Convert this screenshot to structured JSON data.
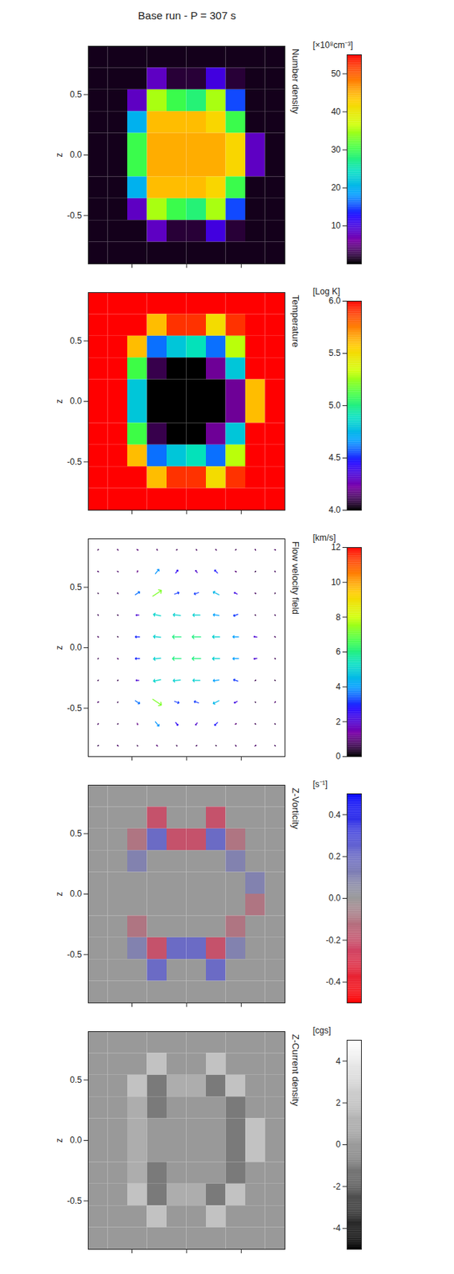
{
  "title": "Base run - P = 307 s",
  "chart_data": [
    {
      "type": "heatmap",
      "title": "Number density",
      "color": "rainbow",
      "x": [
        -0.81,
        -0.63,
        -0.45,
        -0.27,
        -0.09,
        0.09,
        0.27,
        0.45,
        0.63,
        0.81
      ],
      "y": [
        0.81,
        0.63,
        0.45,
        0.27,
        0.09,
        -0.09,
        -0.27,
        -0.45,
        -0.63,
        -0.81
      ],
      "cells": [
        [
          1,
          1,
          1,
          1,
          1,
          1,
          1,
          1,
          1,
          1
        ],
        [
          1,
          1,
          1,
          8,
          2,
          2,
          10,
          2,
          1,
          1
        ],
        [
          1,
          1,
          8,
          35,
          30,
          28,
          35,
          15,
          1,
          1
        ],
        [
          1,
          1,
          20,
          44,
          44,
          44,
          42,
          30,
          1,
          1
        ],
        [
          1,
          1,
          30,
          45,
          45,
          45,
          45,
          42,
          8,
          1
        ],
        [
          1,
          1,
          30,
          45,
          45,
          45,
          45,
          42,
          8,
          1
        ],
        [
          1,
          1,
          20,
          44,
          44,
          44,
          42,
          30,
          1,
          1
        ],
        [
          1,
          1,
          8,
          35,
          30,
          28,
          35,
          15,
          1,
          1
        ],
        [
          1,
          1,
          1,
          8,
          2,
          2,
          10,
          2,
          1,
          1
        ],
        [
          1,
          1,
          1,
          1,
          1,
          1,
          1,
          1,
          1,
          1
        ]
      ],
      "xlim": [
        -0.9,
        0.9
      ],
      "ylim": [
        -0.9,
        0.9
      ],
      "xticks": [
        -0.5,
        0,
        0.5
      ],
      "yticks": [
        -0.5,
        {
          "value": 0,
          "label": "0.0"
        },
        0.5
      ],
      "tick_labels": "y",
      "ylabel": "z",
      "clim": [
        0,
        55
      ],
      "cticks": [
        10,
        20,
        30,
        40,
        50
      ],
      "clabel": "[×10⁸cm⁻³]"
    },
    {
      "type": "heatmap",
      "title": "Temperature",
      "color": "rainbow",
      "x": [
        -0.81,
        -0.63,
        -0.45,
        -0.27,
        -0.09,
        0.09,
        0.27,
        0.45,
        0.63,
        0.81
      ],
      "y": [
        0.81,
        0.63,
        0.45,
        0.27,
        0.09,
        -0.09,
        -0.27,
        -0.45,
        -0.63,
        -0.81
      ],
      "cells": [
        [
          6,
          6,
          6,
          6,
          6,
          6,
          6,
          6,
          6,
          6
        ],
        [
          6,
          6,
          6,
          5.6,
          5.9,
          5.9,
          5.5,
          5.9,
          6,
          6
        ],
        [
          6,
          6,
          5.6,
          4.6,
          4.8,
          4.9,
          4.6,
          5.3,
          6,
          6
        ],
        [
          6,
          6,
          5.1,
          4.1,
          4,
          4,
          4.2,
          4.8,
          6,
          6
        ],
        [
          6,
          6,
          4.8,
          4,
          4,
          4,
          4,
          4.2,
          5.6,
          6
        ],
        [
          6,
          6,
          4.8,
          4,
          4,
          4,
          4,
          4.2,
          5.6,
          6
        ],
        [
          6,
          6,
          5.1,
          4.1,
          4,
          4,
          4.2,
          4.8,
          6,
          6
        ],
        [
          6,
          6,
          5.6,
          4.6,
          4.8,
          4.9,
          4.6,
          5.3,
          6,
          6
        ],
        [
          6,
          6,
          6,
          5.6,
          5.9,
          5.9,
          5.5,
          5.9,
          6,
          6
        ],
        [
          6,
          6,
          6,
          6,
          6,
          6,
          6,
          6,
          6,
          6
        ]
      ],
      "xlim": [
        -0.9,
        0.9
      ],
      "ylim": [
        -0.9,
        0.9
      ],
      "xticks": [
        -0.5,
        0,
        0.5
      ],
      "yticks": [
        -0.5,
        {
          "value": 0,
          "label": "0.0"
        },
        0.5
      ],
      "tick_labels": "y",
      "ylabel": "z",
      "clim": [
        4,
        6
      ],
      "cticks": [
        {
          "value": 4,
          "label": "4.0"
        },
        4.5,
        {
          "value": 5,
          "label": "5.0"
        },
        5.5,
        {
          "value": 6,
          "label": "6.0"
        }
      ],
      "clabel": "[Log K]"
    },
    {
      "type": "vector",
      "title": "Flow velocity field",
      "color": "rainbow",
      "x": [
        -0.81,
        -0.63,
        -0.45,
        -0.27,
        -0.09,
        0.09,
        0.27,
        0.45,
        0.63,
        0.81
      ],
      "y": [
        0.81,
        0.63,
        0.45,
        0.27,
        0.09,
        -0.09,
        -0.27,
        -0.45,
        -0.63,
        -0.81
      ],
      "u": [
        [
          0.5,
          -0.5,
          0.8,
          -0.3,
          0.6,
          0.4,
          -0.6,
          0.5,
          -0.4,
          0.7
        ],
        [
          -0.6,
          0.7,
          0.3,
          2.5,
          1.5,
          -1.2,
          -2,
          0.8,
          0.5,
          -0.3
        ],
        [
          0.4,
          -0.5,
          3,
          6,
          3,
          -3,
          -4,
          -2,
          0.6,
          0.2
        ],
        [
          -0.3,
          0.5,
          -2,
          -5,
          -5,
          -5,
          -4,
          -3,
          -0.5,
          0.4
        ],
        [
          0.6,
          -0.4,
          -3,
          -5,
          -6,
          -6,
          -5,
          -4,
          -2,
          -0.6
        ],
        [
          0.3,
          0.6,
          -3,
          -5,
          -6,
          -6,
          -5,
          -4,
          -2,
          0.5
        ],
        [
          -0.5,
          0.4,
          -2,
          -5,
          -5,
          -5,
          -4,
          -3,
          0.5,
          -0.4
        ],
        [
          0.7,
          -0.3,
          3,
          6,
          3,
          -3,
          -4,
          -2,
          0.4,
          0.6
        ],
        [
          -0.4,
          0.5,
          0.3,
          2.5,
          1.5,
          -1.2,
          -2,
          0.8,
          -0.5,
          0.3
        ],
        [
          0.5,
          -0.6,
          0.4,
          -0.7,
          0.3,
          0.6,
          -0.4,
          0.5,
          0.7,
          -0.5
        ]
      ],
      "v": [
        [
          0.4,
          0.6,
          -0.5,
          0.7,
          0.3,
          -0.6,
          0.5,
          0.4,
          0.6,
          -0.3
        ],
        [
          0.5,
          -0.4,
          1,
          3,
          2,
          1.5,
          2,
          -0.5,
          0.3,
          0.6
        ],
        [
          -0.3,
          0.5,
          2,
          4,
          1,
          -1,
          2,
          1,
          -0.4,
          0.5
        ],
        [
          0.6,
          -0.3,
          0,
          1,
          0.5,
          0,
          0.5,
          -1,
          0.3,
          -0.5
        ],
        [
          -0.4,
          0.3,
          0,
          0.5,
          0,
          0,
          0,
          0,
          0.3,
          0.4
        ],
        [
          0.5,
          -0.6,
          0,
          -0.5,
          0,
          0,
          0,
          0,
          -0.3,
          -0.4
        ],
        [
          -0.3,
          0.4,
          0,
          -1,
          -0.5,
          0,
          -0.5,
          1,
          0.4,
          0.3
        ],
        [
          0.4,
          -0.5,
          -2,
          -4,
          -1,
          1,
          -2,
          -1,
          -0.3,
          0.6
        ],
        [
          -0.6,
          0.3,
          -1,
          -3,
          -2,
          -1.5,
          -2,
          0.5,
          0.4,
          -0.5
        ],
        [
          0.3,
          0.5,
          -0.4,
          0.6,
          -0.5,
          0.4,
          0.3,
          -0.6,
          0.5,
          0.4
        ]
      ],
      "xlim": [
        -0.9,
        0.9
      ],
      "ylim": [
        -0.9,
        0.9
      ],
      "xticks": [
        -0.5,
        0,
        0.5
      ],
      "yticks": [
        -0.5,
        {
          "value": 0,
          "label": "0.0"
        },
        0.5
      ],
      "tick_labels": "y",
      "ylabel": "z",
      "clim": [
        0,
        12
      ],
      "cticks": [
        0,
        2,
        4,
        6,
        8,
        10,
        12
      ],
      "clabel": "[km/s]"
    },
    {
      "type": "heatmap",
      "title": "Z-Vorticity",
      "color": "red-blue",
      "x": [
        -0.81,
        -0.63,
        -0.45,
        -0.27,
        -0.09,
        0.09,
        0.27,
        0.45,
        0.63,
        0.81
      ],
      "y": [
        0.81,
        0.63,
        0.45,
        0.27,
        0.09,
        -0.09,
        -0.27,
        -0.45,
        -0.63,
        -0.81
      ],
      "cells": [
        [
          0,
          0,
          0,
          0,
          0,
          0,
          0,
          0,
          0,
          0
        ],
        [
          0,
          0,
          0,
          -0.2,
          0,
          0,
          -0.2,
          0,
          0,
          0
        ],
        [
          0,
          0,
          -0.1,
          0.2,
          -0.2,
          -0.2,
          0.2,
          -0.1,
          0,
          0
        ],
        [
          0,
          0,
          0.1,
          0,
          0,
          0,
          0,
          0.1,
          0,
          0
        ],
        [
          0,
          0,
          0,
          0,
          0,
          0,
          0,
          0,
          0.1,
          0
        ],
        [
          0,
          0,
          0,
          0,
          0,
          0,
          0,
          0,
          -0.1,
          0
        ],
        [
          0,
          0,
          -0.1,
          0,
          0,
          0,
          0,
          -0.1,
          0,
          0
        ],
        [
          0,
          0,
          0.1,
          -0.2,
          0.2,
          0.2,
          -0.2,
          0.1,
          0,
          0
        ],
        [
          0,
          0,
          0,
          0.2,
          0,
          0,
          0.2,
          0,
          0,
          0
        ],
        [
          0,
          0,
          0,
          0,
          0,
          0,
          0,
          0,
          0,
          0
        ]
      ],
      "xlim": [
        -0.9,
        0.9
      ],
      "ylim": [
        -0.9,
        0.9
      ],
      "xticks": [
        -0.5,
        0,
        0.5
      ],
      "yticks": [
        -0.5,
        {
          "value": 0,
          "label": "0.0"
        },
        0.5
      ],
      "tick_labels": "y",
      "ylabel": "z",
      "clim": [
        -0.5,
        0.5
      ],
      "cticks": [
        -0.4,
        -0.2,
        {
          "value": 0,
          "label": "0.0"
        },
        0.2,
        0.4
      ],
      "clabel": "[s⁻¹]"
    },
    {
      "type": "heatmap",
      "title": "Z-Current density",
      "color": "gray",
      "x": [
        -0.81,
        -0.63,
        -0.45,
        -0.27,
        -0.09,
        0.09,
        0.27,
        0.45,
        0.63,
        0.81
      ],
      "y": [
        0.81,
        0.63,
        0.45,
        0.27,
        0.09,
        -0.09,
        -0.27,
        -0.45,
        -0.63,
        -0.81
      ],
      "cells": [
        [
          0,
          0,
          0,
          0,
          0,
          0,
          0,
          0,
          0,
          0
        ],
        [
          0,
          0,
          0,
          2,
          0,
          0,
          2,
          0,
          0,
          0
        ],
        [
          0,
          0,
          2,
          -1,
          1,
          1,
          -1,
          2,
          0,
          0
        ],
        [
          0,
          0,
          1,
          -1,
          0,
          0,
          0,
          -1,
          0,
          0
        ],
        [
          0,
          0,
          1,
          0,
          0,
          0,
          0,
          -1,
          2,
          0
        ],
        [
          0,
          0,
          1,
          0,
          0,
          0,
          0,
          -1,
          2,
          0
        ],
        [
          0,
          0,
          1,
          -1,
          0,
          0,
          0,
          -1,
          0,
          0
        ],
        [
          0,
          0,
          2,
          -1,
          1,
          1,
          -1,
          2,
          0,
          0
        ],
        [
          0,
          0,
          0,
          2,
          0,
          0,
          2,
          0,
          0,
          0
        ],
        [
          0,
          0,
          0,
          0,
          0,
          0,
          0,
          0,
          0,
          0
        ]
      ],
      "xlim": [
        -0.9,
        0.9
      ],
      "ylim": [
        -0.9,
        0.9
      ],
      "xticks": [
        -0.5,
        0,
        0.5
      ],
      "yticks": [
        -0.5,
        {
          "value": 0,
          "label": "0.0"
        },
        0.5
      ],
      "tick_labels": "y",
      "ylabel": "z",
      "clim": [
        -5,
        5
      ],
      "cticks": [
        -4,
        -2,
        0,
        2,
        4
      ],
      "clabel": "[cgs]"
    }
  ]
}
